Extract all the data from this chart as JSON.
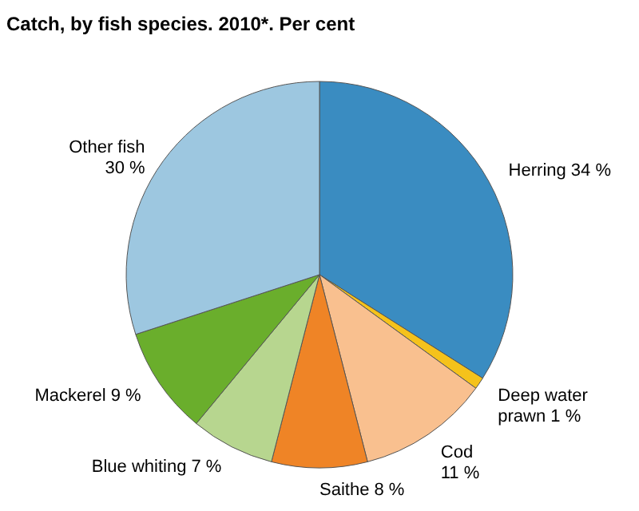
{
  "chart_data": {
    "type": "pie",
    "title": "Catch, by fish species. 2010*. Per cent",
    "categories": [
      "Herring",
      "Deep water prawn",
      "Cod",
      "Saithe",
      "Blue whiting",
      "Mackerel",
      "Other fish"
    ],
    "values": [
      34,
      1,
      11,
      8,
      7,
      9,
      30
    ],
    "value_labels": [
      "34 %",
      "1 %",
      "11 %",
      "8 %",
      "7 %",
      "9 %",
      "30 %"
    ],
    "colors": [
      "#3a8cc1",
      "#f5c21b",
      "#f9c08f",
      "#ef8426",
      "#b7d68f",
      "#6aae2c",
      "#9dc7e0"
    ]
  }
}
